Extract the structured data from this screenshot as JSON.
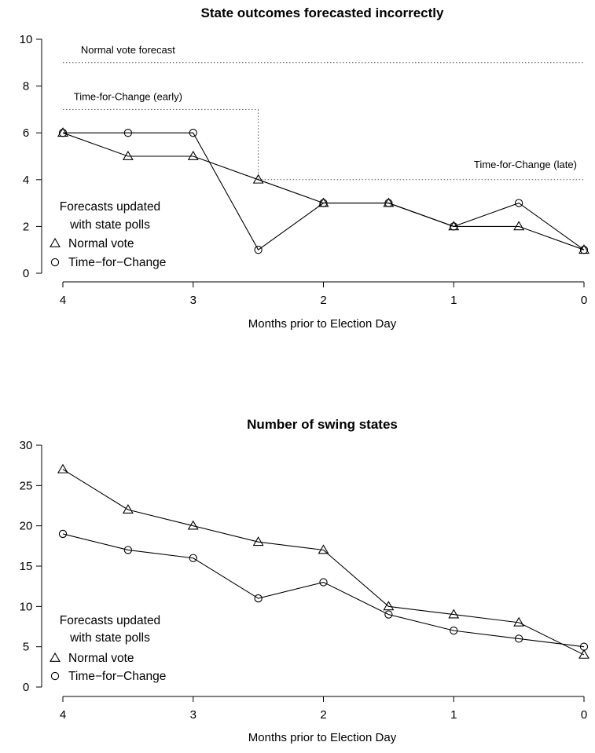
{
  "chart_data": [
    {
      "type": "line",
      "title": "State outcomes forecasted incorrectly",
      "xlabel": "Months prior to Election Day",
      "ylabel": "",
      "x": [
        4,
        3.5,
        3,
        2.5,
        2,
        1.5,
        1,
        0.5,
        0
      ],
      "xlim": [
        4,
        0
      ],
      "ylim": [
        0,
        10
      ],
      "xticks": [
        4,
        3,
        2,
        1,
        0
      ],
      "yticks": [
        0,
        2,
        4,
        6,
        8,
        10
      ],
      "series": [
        {
          "name": "Normal vote",
          "marker": "triangle",
          "values": [
            6,
            5,
            5,
            4,
            3,
            3,
            2,
            2,
            1
          ]
        },
        {
          "name": "Time-for-Change",
          "marker": "circle",
          "values": [
            6,
            6,
            6,
            1,
            3,
            3,
            2,
            3,
            1
          ]
        }
      ],
      "reference_lines": [
        {
          "label": "Normal vote forecast",
          "style": "dotted",
          "segments": [
            [
              4,
              9,
              0,
              9
            ]
          ],
          "label_x": 3.5,
          "label_y": 9.4
        },
        {
          "label": "Time-for-Change (early)",
          "style": "dotted",
          "segments": [
            [
              4,
              7,
              2.5,
              7
            ],
            [
              2.5,
              7,
              2.5,
              4
            ]
          ],
          "label_x": 3.5,
          "label_y": 7.4
        },
        {
          "label": "Time-for-Change (late)",
          "style": "dotted",
          "segments": [
            [
              2.5,
              4,
              0,
              4
            ]
          ],
          "label_x": 0.45,
          "label_y": 4.5
        }
      ],
      "legend": {
        "position": "bottom-left",
        "title_lines": [
          "Forecasts updated",
          "with state polls"
        ],
        "entries": [
          "Normal vote",
          "Time−for−Change"
        ]
      },
      "grid": false
    },
    {
      "type": "line",
      "title": "Number of swing states",
      "xlabel": "Months prior to Election Day",
      "ylabel": "",
      "x": [
        4,
        3.5,
        3,
        2.5,
        2,
        1.5,
        1,
        0.5,
        0
      ],
      "xlim": [
        4,
        0
      ],
      "ylim": [
        0,
        30
      ],
      "xticks": [
        4,
        3,
        2,
        1,
        0
      ],
      "yticks": [
        0,
        5,
        10,
        15,
        20,
        25,
        30
      ],
      "series": [
        {
          "name": "Normal vote",
          "marker": "triangle",
          "values": [
            27,
            22,
            20,
            18,
            17,
            10,
            9,
            8,
            4
          ]
        },
        {
          "name": "Time-for-Change",
          "marker": "circle",
          "values": [
            19,
            17,
            16,
            11,
            13,
            9,
            7,
            6,
            5
          ]
        }
      ],
      "reference_lines": [],
      "legend": {
        "position": "bottom-left",
        "title_lines": [
          "Forecasts updated",
          "with state polls"
        ],
        "entries": [
          "Normal vote",
          "Time−for−Change"
        ]
      },
      "grid": false
    }
  ]
}
